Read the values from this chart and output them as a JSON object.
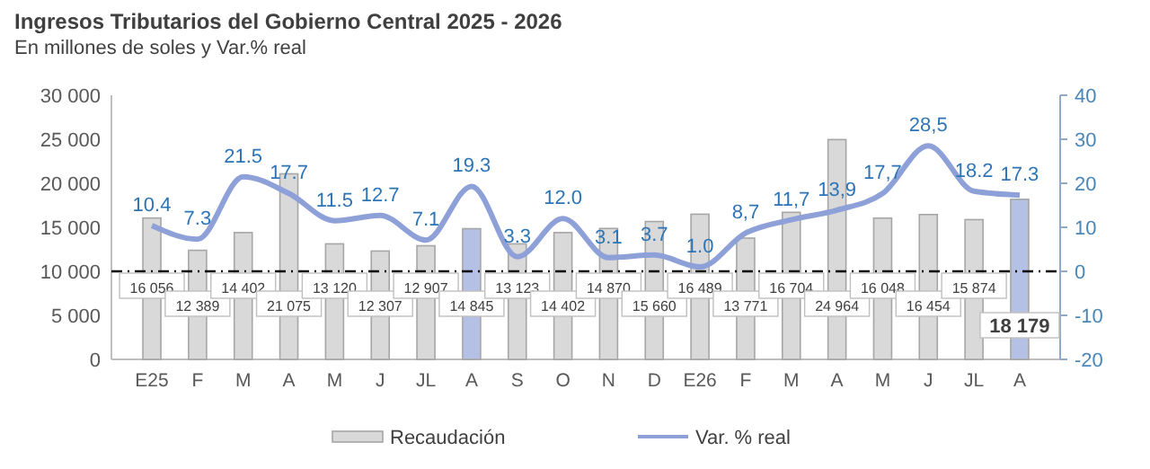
{
  "chart_data": {
    "type": "bar",
    "title": "Ingresos Tributarios del Gobierno Central 2025 - 2026",
    "subtitle": "En millones de soles y Var.% real",
    "categories": [
      "E25",
      "F",
      "M",
      "A",
      "M",
      "J",
      "JL",
      "A",
      "S",
      "O",
      "N",
      "D",
      "E26",
      "F",
      "M",
      "A",
      "M",
      "J",
      "JL",
      "A"
    ],
    "series": [
      {
        "name": "Recaudación",
        "color": "#d9d9d9",
        "colors": [
          "#d9d9d9",
          "#d9d9d9",
          "#d9d9d9",
          "#d9d9d9",
          "#d9d9d9",
          "#d9d9d9",
          "#d9d9d9",
          "#b4c0e4",
          "#d9d9d9",
          "#d9d9d9",
          "#d9d9d9",
          "#d9d9d9",
          "#d9d9d9",
          "#d9d9d9",
          "#d9d9d9",
          "#d9d9d9",
          "#d9d9d9",
          "#d9d9d9",
          "#d9d9d9",
          "#b4c0e4"
        ],
        "values": [
          16056,
          12389,
          14402,
          21075,
          13120,
          12307,
          12907,
          14845,
          13123,
          14402,
          14870,
          15660,
          16489,
          13771,
          16704,
          24964,
          16048,
          16454,
          15874,
          18179
        ],
        "value_labels": [
          "16 056",
          "12 389",
          "14 402",
          "21 075",
          "13 120",
          "12 307",
          "12 907",
          "14 845",
          "13 123",
          "14 402",
          "14 870",
          "15 660",
          "16 489",
          "13 771",
          "16 704",
          "24 964",
          "16 048",
          "16 454",
          "15 874",
          "18 179"
        ]
      },
      {
        "name": "Var. % real",
        "type": "line",
        "axis": "y2",
        "color": "#8ea0d8",
        "values": [
          10.4,
          7.3,
          21.5,
          17.7,
          11.5,
          12.7,
          7.1,
          19.3,
          3.3,
          12.0,
          3.1,
          3.7,
          1.0,
          8.7,
          11.7,
          13.9,
          17.7,
          28.5,
          18.2,
          17.3
        ],
        "value_labels": [
          "10.4",
          "7.3",
          "21.5",
          "17.7",
          "11.5",
          "12.7",
          "7.1",
          "19.3",
          "3.3",
          "12.0",
          "3.1",
          "3.7",
          "1.0",
          "8,7",
          "11,7",
          "13,9",
          "17,7",
          "28,5",
          "18.2",
          "17.3"
        ]
      }
    ],
    "ylim": [
      0,
      30000
    ],
    "yticks": [
      {
        "value": 0,
        "label": "0"
      },
      {
        "value": 5000,
        "label": "5 000"
      },
      {
        "value": 10000,
        "label": "10 000"
      },
      {
        "value": 15000,
        "label": "15 000"
      },
      {
        "value": 20000,
        "label": "20 000"
      },
      {
        "value": 25000,
        "label": "25 000"
      },
      {
        "value": 30000,
        "label": "30 000"
      }
    ],
    "y2lim": [
      -20,
      40
    ],
    "y2ticks": [
      -20,
      -10,
      0,
      10,
      20,
      30,
      40
    ],
    "ref_lines": [
      {
        "axis": "y2",
        "value": 0,
        "color": "#000000",
        "line_style": "dashdot"
      }
    ],
    "legend": "bottom",
    "grid": false
  }
}
